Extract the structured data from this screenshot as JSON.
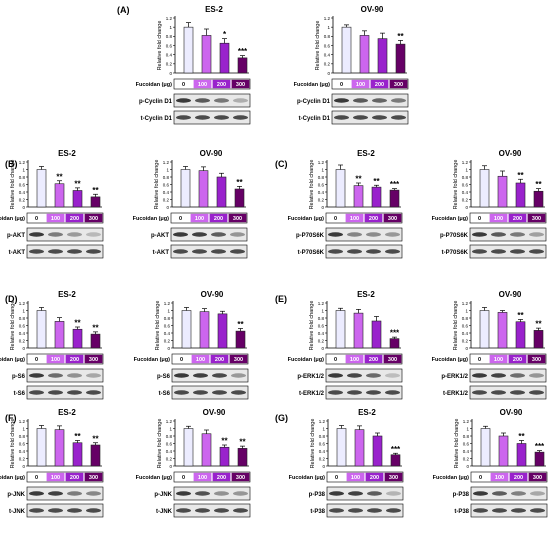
{
  "chart_data": [
    {
      "type": "bar",
      "panel": "(A)",
      "title": "ES-2",
      "ylabel": "Relative fold change",
      "ylim": [
        0,
        1.2
      ],
      "categories": [
        "0",
        "100",
        "200",
        "300"
      ],
      "values": [
        1.0,
        0.82,
        0.65,
        0.33
      ],
      "errors": [
        0.1,
        0.14,
        0.1,
        0.05
      ],
      "significance": [
        "",
        "",
        "*",
        "***"
      ],
      "xlabel": "Fucoidan (μg)",
      "blots": [
        "p-Cyclin D1",
        "t-Cyclin D1"
      ]
    },
    {
      "type": "bar",
      "panel": "",
      "title": "OV-90",
      "ylabel": "Relative fold change",
      "ylim": [
        0,
        1.2
      ],
      "categories": [
        "0",
        "100",
        "200",
        "300"
      ],
      "values": [
        1.0,
        0.82,
        0.75,
        0.63
      ],
      "errors": [
        0.05,
        0.1,
        0.12,
        0.08
      ],
      "significance": [
        "",
        "",
        "",
        "**"
      ],
      "xlabel": "Fucoidan (μg)",
      "blots": [
        "p-Cyclin D1",
        "t-Cyclin D1"
      ]
    },
    {
      "type": "bar",
      "panel": "(B)",
      "title": "ES-2",
      "ylabel": "Relative fold change",
      "ylim": [
        0,
        1.2
      ],
      "categories": [
        "0",
        "100",
        "200",
        "300"
      ],
      "values": [
        1.0,
        0.62,
        0.44,
        0.27
      ],
      "errors": [
        0.08,
        0.08,
        0.07,
        0.07
      ],
      "significance": [
        "",
        "**",
        "**",
        "**"
      ],
      "xlabel": "Fucoidan (μg)",
      "blots": [
        "p-AKT",
        "t-AKT"
      ]
    },
    {
      "type": "bar",
      "panel": "",
      "title": "OV-90",
      "ylabel": "Relative fold change",
      "ylim": [
        0,
        1.2
      ],
      "categories": [
        "0",
        "100",
        "200",
        "300"
      ],
      "values": [
        1.0,
        0.97,
        0.8,
        0.48
      ],
      "errors": [
        0.08,
        0.1,
        0.1,
        0.07
      ],
      "significance": [
        "",
        "",
        "",
        "**"
      ],
      "xlabel": "Fucoidan (μg)",
      "blots": [
        "p-AKT",
        "t-AKT"
      ]
    },
    {
      "type": "bar",
      "panel": "(C)",
      "title": "ES-2",
      "ylabel": "Relative fold change",
      "ylim": [
        0,
        1.2
      ],
      "categories": [
        "0",
        "100",
        "200",
        "300"
      ],
      "values": [
        1.0,
        0.57,
        0.53,
        0.45
      ],
      "errors": [
        0.12,
        0.07,
        0.05,
        0.04
      ],
      "significance": [
        "",
        "**",
        "**",
        "***"
      ],
      "xlabel": "Fucoidan (μg)",
      "blots": [
        "p-P70S6K",
        "t-P70S6K"
      ]
    },
    {
      "type": "bar",
      "panel": "",
      "title": "OV-90",
      "ylabel": "Relative fold change",
      "ylim": [
        0,
        1.2
      ],
      "categories": [
        "0",
        "100",
        "200",
        "300"
      ],
      "values": [
        1.0,
        0.82,
        0.64,
        0.42
      ],
      "errors": [
        0.1,
        0.14,
        0.1,
        0.07
      ],
      "significance": [
        "",
        "",
        "**",
        "**"
      ],
      "xlabel": "Fucoidan (μg)",
      "blots": [
        "p-P70S6K",
        "t-P70S6K"
      ]
    },
    {
      "type": "bar",
      "panel": "(D)",
      "title": "ES-2",
      "ylabel": "Relative fold change",
      "ylim": [
        0,
        1.2
      ],
      "categories": [
        "0",
        "100",
        "200",
        "300"
      ],
      "values": [
        1.0,
        0.71,
        0.5,
        0.37
      ],
      "errors": [
        0.08,
        0.1,
        0.06,
        0.06
      ],
      "significance": [
        "",
        "",
        "**",
        "**"
      ],
      "xlabel": "Fucoidan (μg)",
      "blots": [
        "p-S6",
        "t-S6"
      ]
    },
    {
      "type": "bar",
      "panel": "",
      "title": "OV-90",
      "ylabel": "Relative fold change",
      "ylim": [
        0,
        1.2
      ],
      "categories": [
        "0",
        "100",
        "200",
        "300"
      ],
      "values": [
        1.0,
        0.97,
        0.91,
        0.45
      ],
      "errors": [
        0.08,
        0.08,
        0.07,
        0.07
      ],
      "significance": [
        "",
        "",
        "",
        "**"
      ],
      "xlabel": "Fucoidan (μg)",
      "blots": [
        "p-S6",
        "t-S6"
      ]
    },
    {
      "type": "bar",
      "panel": "(E)",
      "title": "ES-2",
      "ylabel": "Relative fold change",
      "ylim": [
        0,
        1.2
      ],
      "categories": [
        "0",
        "100",
        "200",
        "300"
      ],
      "values": [
        1.0,
        0.93,
        0.72,
        0.25
      ],
      "errors": [
        0.06,
        0.1,
        0.12,
        0.04
      ],
      "significance": [
        "",
        "",
        "",
        "***"
      ],
      "xlabel": "Fucoidan (μg)",
      "blots": [
        "p-ERK1/2",
        "t-ERK1/2"
      ]
    },
    {
      "type": "bar",
      "panel": "",
      "title": "OV-90",
      "ylabel": "Relative fold change",
      "ylim": [
        0,
        1.2
      ],
      "categories": [
        "0",
        "100",
        "200",
        "300"
      ],
      "values": [
        1.0,
        0.95,
        0.7,
        0.47
      ],
      "errors": [
        0.08,
        0.05,
        0.06,
        0.06
      ],
      "significance": [
        "",
        "",
        "**",
        "**"
      ],
      "xlabel": "Fucoidan (μg)",
      "blots": [
        "p-ERK1/2",
        "t-ERK1/2"
      ]
    },
    {
      "type": "bar",
      "panel": "(F)",
      "title": "ES-2",
      "ylabel": "Relative fold change",
      "ylim": [
        0,
        1.2
      ],
      "categories": [
        "0",
        "100",
        "200",
        "300"
      ],
      "values": [
        1.0,
        0.97,
        0.62,
        0.56
      ],
      "errors": [
        0.08,
        0.1,
        0.06,
        0.06
      ],
      "significance": [
        "",
        "",
        "**",
        "**"
      ],
      "xlabel": "Fucoidan (μg)",
      "blots": [
        "p-JNK",
        "t-JNK"
      ]
    },
    {
      "type": "bar",
      "panel": "",
      "title": "OV-90",
      "ylabel": "Relative fold change",
      "ylim": [
        0,
        1.2
      ],
      "categories": [
        "0",
        "100",
        "200",
        "300"
      ],
      "values": [
        1.0,
        0.86,
        0.5,
        0.47
      ],
      "errors": [
        0.06,
        0.1,
        0.06,
        0.06
      ],
      "significance": [
        "",
        "",
        "**",
        "**"
      ],
      "xlabel": "Fucoidan (μg)",
      "blots": [
        "p-JNK",
        "t-JNK"
      ]
    },
    {
      "type": "bar",
      "panel": "(G)",
      "title": "ES-2",
      "ylabel": "Relative fold change",
      "ylim": [
        0,
        1.2
      ],
      "categories": [
        "0",
        "100",
        "200",
        "300"
      ],
      "values": [
        1.0,
        0.97,
        0.8,
        0.3
      ],
      "errors": [
        0.08,
        0.1,
        0.08,
        0.04
      ],
      "significance": [
        "",
        "",
        "",
        "***"
      ],
      "xlabel": "Fucoidan (μg)",
      "blots": [
        "p-P38",
        "t-P38"
      ]
    },
    {
      "type": "bar",
      "panel": "",
      "title": "OV-90",
      "ylabel": "Relative fold change",
      "ylim": [
        0,
        1.2
      ],
      "categories": [
        "0",
        "100",
        "200",
        "300"
      ],
      "values": [
        1.0,
        0.8,
        0.6,
        0.37
      ],
      "errors": [
        0.06,
        0.08,
        0.08,
        0.04
      ],
      "significance": [
        "",
        "",
        "**",
        "***"
      ],
      "xlabel": "Fucoidan (μg)",
      "blots": [
        "p-P38",
        "t-P38"
      ]
    }
  ],
  "ticks": [
    "0",
    "0.2",
    "0.4",
    "0.6",
    "0.8",
    "1",
    "1.2"
  ],
  "colors": {
    "bar": [
      "#ececff",
      "#cc66ee",
      "#9922cc",
      "#660066"
    ],
    "dose_box": [
      "#ffffff",
      "#cc66ee",
      "#9922cc",
      "#660066"
    ],
    "dose_text": [
      "#000000",
      "#ffffff",
      "#ffffff",
      "#ffffff"
    ],
    "blot_bg": "#e8e8e8",
    "band": "#3a3a3a"
  }
}
